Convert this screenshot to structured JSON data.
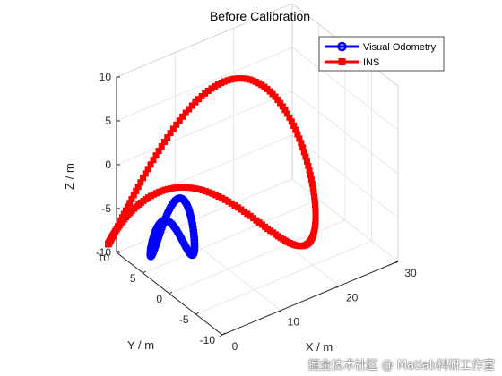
{
  "chart_data": {
    "type": "line3d",
    "title": "Before Calibration",
    "xlabel": "X / m",
    "ylabel": "Y / m",
    "zlabel": "Z / m",
    "xlim": [
      0,
      30
    ],
    "ylim": [
      -10,
      10
    ],
    "zlim": [
      -10,
      10
    ],
    "xticks": [
      "0",
      "10",
      "20",
      "30"
    ],
    "yticks": [
      "10",
      "5",
      "0",
      "-5",
      "-10"
    ],
    "zticks": [
      "10",
      "5",
      "0",
      "-5",
      "-10"
    ],
    "grid": true,
    "legend_position": "top-right",
    "series": [
      {
        "name": "Visual Odometry",
        "color": "#0000ff",
        "marker": "circle",
        "shape": "figure-eight",
        "center": [
          1.6,
          1.2,
          -4.0
        ],
        "x_half_range": 3.4,
        "y_half_range": 1.8,
        "z_amplitude": 2.6
      },
      {
        "name": "INS",
        "color": "#ff0000",
        "marker": "square",
        "shape": "figure-eight",
        "center": [
          9.5,
          2.5,
          -1.5
        ],
        "x_half_range": 15.5,
        "y_half_range": 9.5,
        "z_amplitude": 6.0
      }
    ]
  },
  "watermark": "掘金技术社区 @ Matlab科研工作室"
}
